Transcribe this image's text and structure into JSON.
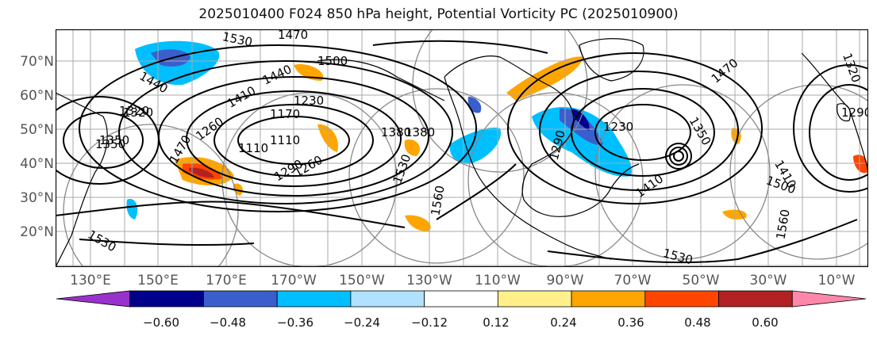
{
  "title": "2025010400 F024 850 hPa height, Potential Vorticity PC (2025010900)",
  "lat_labels": [
    "70°N",
    "60°N",
    "50°N",
    "40°N",
    "30°N",
    "20°N"
  ],
  "lon_labels": [
    "130°E",
    "150°E",
    "170°E",
    "170°W",
    "150°W",
    "130°W",
    "110°W",
    "90°W",
    "70°W",
    "50°W",
    "30°W",
    "10°W"
  ],
  "contour_labels": [
    "1530",
    "1470",
    "1500",
    "1440",
    "1440",
    "1410",
    "1230",
    "1320",
    "1260",
    "1470",
    "1350",
    "1110",
    "1170",
    "1380",
    "1530",
    "1560",
    "1110",
    "1290",
    "1230",
    "1350",
    "1410",
    "1320",
    "1290",
    "1410",
    "1500",
    "1560",
    "1530",
    "1530",
    "1470",
    "1290",
    "1260",
    "1380",
    "1350",
    "1320"
  ],
  "colorbar": {
    "ticks": [
      "−0.60",
      "−0.48",
      "−0.36",
      "−0.24",
      "−0.12",
      "0.12",
      "0.24",
      "0.36",
      "0.48",
      "0.60"
    ],
    "colors": [
      "#9932cc",
      "#00008b",
      "#3a5fcd",
      "#00bfff",
      "#b0e2ff",
      "#ffffff",
      "#fff08a",
      "#ffa500",
      "#ff4500",
      "#b22222",
      "#ff88aa"
    ]
  }
}
